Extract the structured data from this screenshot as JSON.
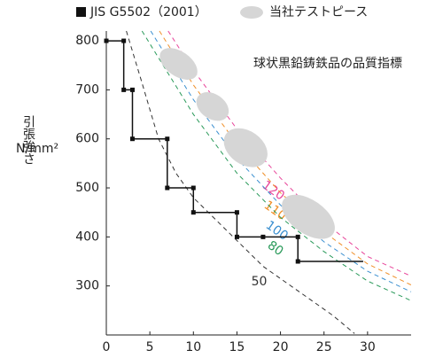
{
  "chart_data": {
    "type": "line",
    "title": "球状黒鉛鋳鉄品の品質指標",
    "ylabel": "引張強さ",
    "yunit": "N/mm²",
    "xlim": [
      0,
      35
    ],
    "ylim": [
      200,
      820
    ],
    "xticks": [
      0,
      5,
      10,
      15,
      20,
      25,
      30
    ],
    "yticks": [
      300,
      400,
      500,
      600,
      700,
      800
    ],
    "series": [
      {
        "name": "JIS G5502（2001）",
        "color": "#111111",
        "x": [
          0,
          2,
          2,
          3,
          3,
          7,
          7,
          10,
          10,
          15,
          15,
          18,
          22,
          22,
          29.5
        ],
        "values": [
          800,
          800,
          700,
          700,
          600,
          600,
          500,
          500,
          450,
          450,
          400,
          400,
          400,
          350,
          350
        ]
      }
    ],
    "test_pieces": {
      "name": "当社テストピース",
      "color": "#d6d6d6",
      "x": [
        8.3,
        12.2,
        16,
        23.2
      ],
      "values": [
        753,
        666,
        582,
        441
      ]
    },
    "curves": [
      {
        "name": "120",
        "color": "#e8459a",
        "x": [
          7.1,
          10,
          15,
          20,
          25,
          30,
          35
        ],
        "values": [
          820,
          740,
          620,
          520,
          430,
          360,
          320
        ]
      },
      {
        "name": "110",
        "color": "#f0902a",
        "x": [
          6.1,
          10,
          15,
          20,
          25,
          30,
          35
        ],
        "values": [
          820,
          710,
          590,
          490,
          410,
          345,
          302
        ]
      },
      {
        "name": "100",
        "color": "#3a8fd0",
        "x": [
          5.1,
          10,
          15,
          20,
          25,
          30,
          35
        ],
        "values": [
          820,
          680,
          560,
          465,
          390,
          330,
          288
        ]
      },
      {
        "name": "80",
        "color": "#2a9a5a",
        "x": [
          4.1,
          10,
          15,
          20,
          25,
          30,
          35
        ],
        "values": [
          820,
          650,
          530,
          440,
          370,
          310,
          270
        ]
      },
      {
        "name": "50",
        "color": "#333333",
        "x": [
          2.3,
          4,
          6,
          8,
          10,
          14,
          18,
          22,
          26,
          28.5
        ],
        "values": [
          820,
          720,
          600,
          530,
          480,
          410,
          340,
          290,
          240,
          203
        ]
      }
    ]
  }
}
